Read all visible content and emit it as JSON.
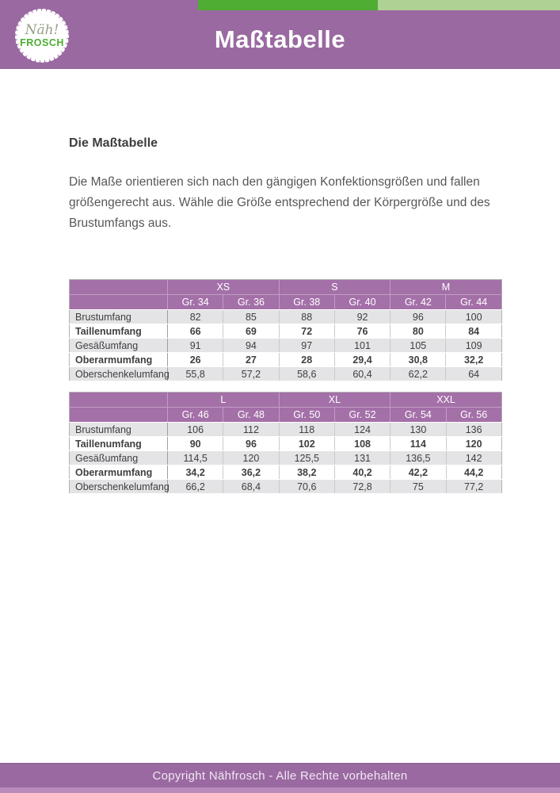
{
  "header": {
    "title": "Maßtabelle",
    "logo": {
      "line1": "Näh!",
      "line2": "FROSCH"
    }
  },
  "content": {
    "heading": "Die Maßtabelle",
    "paragraph_lines": [
      "Die Maße orientieren sich nach den gängigen Konfektionsgrößen und fallen größengerecht aus. Wähle die Größe entsprechend der Körpergröße und des Brustumfangs aus."
    ]
  },
  "tables": [
    {
      "name": "sizes-xs-s-m",
      "size_groups": [
        "XS",
        "S",
        "M"
      ],
      "size_cols": [
        "Gr. 34",
        "Gr. 36",
        "Gr. 38",
        "Gr. 40",
        "Gr. 42",
        "Gr. 44"
      ],
      "rows": [
        {
          "label": "Brustumfang",
          "values": [
            "82",
            "85",
            "88",
            "92",
            "96",
            "100"
          ]
        },
        {
          "label": "Taillenumfang",
          "values": [
            "66",
            "69",
            "72",
            "76",
            "80",
            "84"
          ]
        },
        {
          "label": "Gesäßumfang",
          "values": [
            "91",
            "94",
            "97",
            "101",
            "105",
            "109"
          ]
        },
        {
          "label": "Oberarmumfang",
          "values": [
            "26",
            "27",
            "28",
            "29,4",
            "30,8",
            "32,2"
          ]
        },
        {
          "label": "Oberschenkelumfang",
          "values": [
            "55,8",
            "57,2",
            "58,6",
            "60,4",
            "62,2",
            "64"
          ]
        }
      ]
    },
    {
      "name": "sizes-l-xl-xxl",
      "size_groups": [
        "L",
        "XL",
        "XXL"
      ],
      "size_cols": [
        "Gr. 46",
        "Gr. 48",
        "Gr. 50",
        "Gr. 52",
        "Gr. 54",
        "Gr. 56"
      ],
      "rows": [
        {
          "label": "Brustumfang",
          "values": [
            "106",
            "112",
            "118",
            "124",
            "130",
            "136"
          ]
        },
        {
          "label": "Taillenumfang",
          "values": [
            "90",
            "96",
            "102",
            "108",
            "114",
            "120"
          ]
        },
        {
          "label": "Gesäßumfang",
          "values": [
            "114,5",
            "120",
            "125,5",
            "131",
            "136,5",
            "142"
          ]
        },
        {
          "label": "Oberarmumfang",
          "values": [
            "34,2",
            "36,2",
            "38,2",
            "40,2",
            "42,2",
            "44,2"
          ]
        },
        {
          "label": "Oberschenkelumfang",
          "values": [
            "66,2",
            "68,4",
            "70,6",
            "72,8",
            "75",
            "77,2"
          ]
        }
      ]
    }
  ],
  "footer": {
    "copyright": "Copyright Nähfrosch - Alle Rechte vorbehalten"
  },
  "colors": {
    "header_purple": "#9A69A1",
    "table_header_purple": "#A470A8",
    "accent_green_dark": "#4FAD33",
    "accent_green_light": "#AFD194",
    "row_stripe_gray": "#E4E3E5",
    "footer_strip_purple": "#B98BBD",
    "logo_green": "#4FAD33"
  }
}
